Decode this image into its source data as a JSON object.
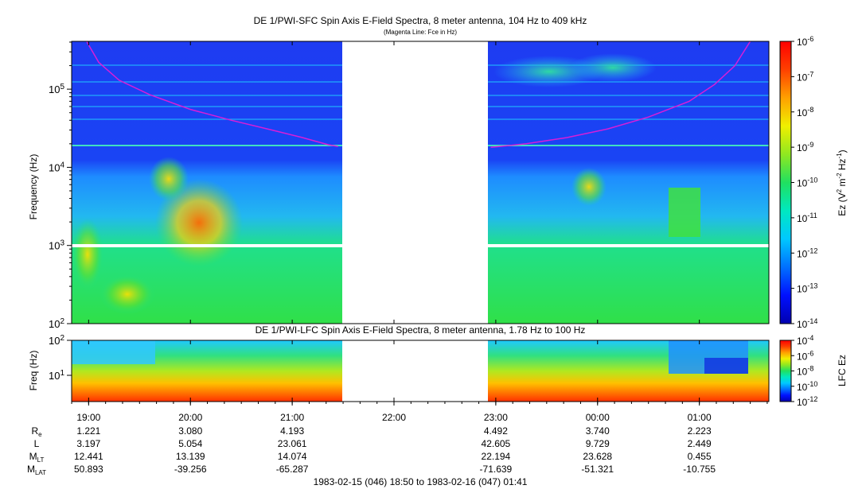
{
  "colors": {
    "background_blue": "#1a3cf0",
    "magenta_line": "#d81ed8",
    "white_band": "#ffffff",
    "colormap": [
      "#0000b0",
      "#0010ff",
      "#0070ff",
      "#00c8ff",
      "#00e8c0",
      "#20e060",
      "#90e820",
      "#f0f000",
      "#ffa000",
      "#ff4000",
      "#ff0000"
    ]
  },
  "chart_data": [
    {
      "type": "heatmap",
      "title": "DE 1/PWI-SFC  Spin Axis E-Field Spectra, 8 meter antenna, 104 Hz to 409 kHz",
      "subtitle": "(Magenta Line: Fce in Hz)",
      "ylabel": "Frequency (Hz)",
      "y_scale": "log",
      "ylim": [
        100,
        409000
      ],
      "y_ticks": [
        {
          "value": 100,
          "base": "10",
          "exp": "2"
        },
        {
          "value": 1000,
          "base": "10",
          "exp": "3"
        },
        {
          "value": 10000,
          "base": "10",
          "exp": "4"
        },
        {
          "value": 100000,
          "base": "10",
          "exp": "5"
        }
      ],
      "data_gap_hours": [
        21.5,
        22.95
      ],
      "colorbar": {
        "label_prefix": "Ez (V",
        "label_sup1": "2",
        "label_mid": " m",
        "label_sup2": "-2",
        "label_mid2": " Hz",
        "label_sup3": "-1",
        "label_suffix": ")",
        "scale": "log",
        "range": [
          1e-14,
          1e-06
        ],
        "ticks": [
          {
            "value": 1e-06,
            "base": "10",
            "exp": "-6"
          },
          {
            "value": 1e-07,
            "base": "10",
            "exp": "-7"
          },
          {
            "value": 1e-08,
            "base": "10",
            "exp": "-8"
          },
          {
            "value": 1e-09,
            "base": "10",
            "exp": "-9"
          },
          {
            "value": 1e-10,
            "base": "10",
            "exp": "-10"
          },
          {
            "value": 1e-11,
            "base": "10",
            "exp": "-11"
          },
          {
            "value": 1e-12,
            "base": "10",
            "exp": "-12"
          },
          {
            "value": 1e-13,
            "base": "10",
            "exp": "-13"
          },
          {
            "value": 1e-14,
            "base": "10",
            "exp": "-14"
          }
        ]
      },
      "fce_line": {
        "name": "Fce",
        "points": [
          [
            18.98,
            409000
          ],
          [
            19.1,
            220000
          ],
          [
            19.3,
            130000
          ],
          [
            19.6,
            85000
          ],
          [
            20.0,
            55000
          ],
          [
            20.4,
            40000
          ],
          [
            20.8,
            30000
          ],
          [
            21.1,
            24000
          ],
          [
            21.35,
            19500
          ],
          [
            21.45,
            18500
          ],
          [
            22.95,
            18000
          ],
          [
            23.3,
            20000
          ],
          [
            23.7,
            24000
          ],
          [
            24.1,
            31000
          ],
          [
            24.5,
            44000
          ],
          [
            24.9,
            70000
          ],
          [
            25.15,
            115000
          ],
          [
            25.35,
            200000
          ],
          [
            25.5,
            409000
          ]
        ]
      }
    },
    {
      "type": "heatmap",
      "title": "DE 1/PWI-LFC  Spin Axis E-Field Spectra, 8 meter antenna, 1.78 Hz to 100 Hz",
      "ylabel": "Freq (Hz)",
      "y_scale": "log",
      "ylim": [
        1.78,
        100
      ],
      "y_ticks": [
        {
          "value": 10,
          "base": "10",
          "exp": "1"
        },
        {
          "value": 100,
          "base": "10",
          "exp": "2"
        }
      ],
      "data_gap_hours": [
        21.5,
        22.95
      ],
      "colorbar": {
        "label": "LFC Ez",
        "scale": "log",
        "range": [
          1e-12,
          0.0001
        ],
        "ticks": [
          {
            "value": 0.0001,
            "base": "10",
            "exp": "-4"
          },
          {
            "value": 1e-06,
            "base": "10",
            "exp": "-6"
          },
          {
            "value": 1e-08,
            "base": "10",
            "exp": "-8"
          },
          {
            "value": 1e-10,
            "base": "10",
            "exp": "-10"
          },
          {
            "value": 1e-12,
            "base": "10",
            "exp": "-12"
          }
        ]
      }
    }
  ],
  "time_axis": {
    "range_hours": [
      18.833,
      25.683
    ],
    "ticks": [
      {
        "hour": 19,
        "label": "19:00"
      },
      {
        "hour": 20,
        "label": "20:00"
      },
      {
        "hour": 21,
        "label": "21:00"
      },
      {
        "hour": 22,
        "label": "22:00"
      },
      {
        "hour": 23,
        "label": "23:00"
      },
      {
        "hour": 24,
        "label": "00:00"
      },
      {
        "hour": 25,
        "label": "01:00"
      }
    ]
  },
  "ephemeris": {
    "rows": [
      {
        "label": "R",
        "sub": "e",
        "values": [
          "1.221",
          "3.080",
          "4.193",
          "",
          "4.492",
          "3.740",
          "2.223"
        ]
      },
      {
        "label": "L",
        "sub": "",
        "values": [
          "3.197",
          "5.054",
          "23.061",
          "",
          "42.605",
          "9.729",
          "2.449"
        ]
      },
      {
        "label": "M",
        "sub": "LT",
        "values": [
          "12.441",
          "13.139",
          "14.074",
          "",
          "22.194",
          "23.628",
          "0.455"
        ]
      },
      {
        "label": "M",
        "sub": "LAT",
        "values": [
          "50.893",
          "-39.256",
          "-65.287",
          "",
          "-71.639",
          "-51.321",
          "-10.755"
        ]
      }
    ]
  },
  "footer": {
    "time_range": "1983-02-15 (046) 18:50 to 1983-02-16 (047) 01:41"
  }
}
